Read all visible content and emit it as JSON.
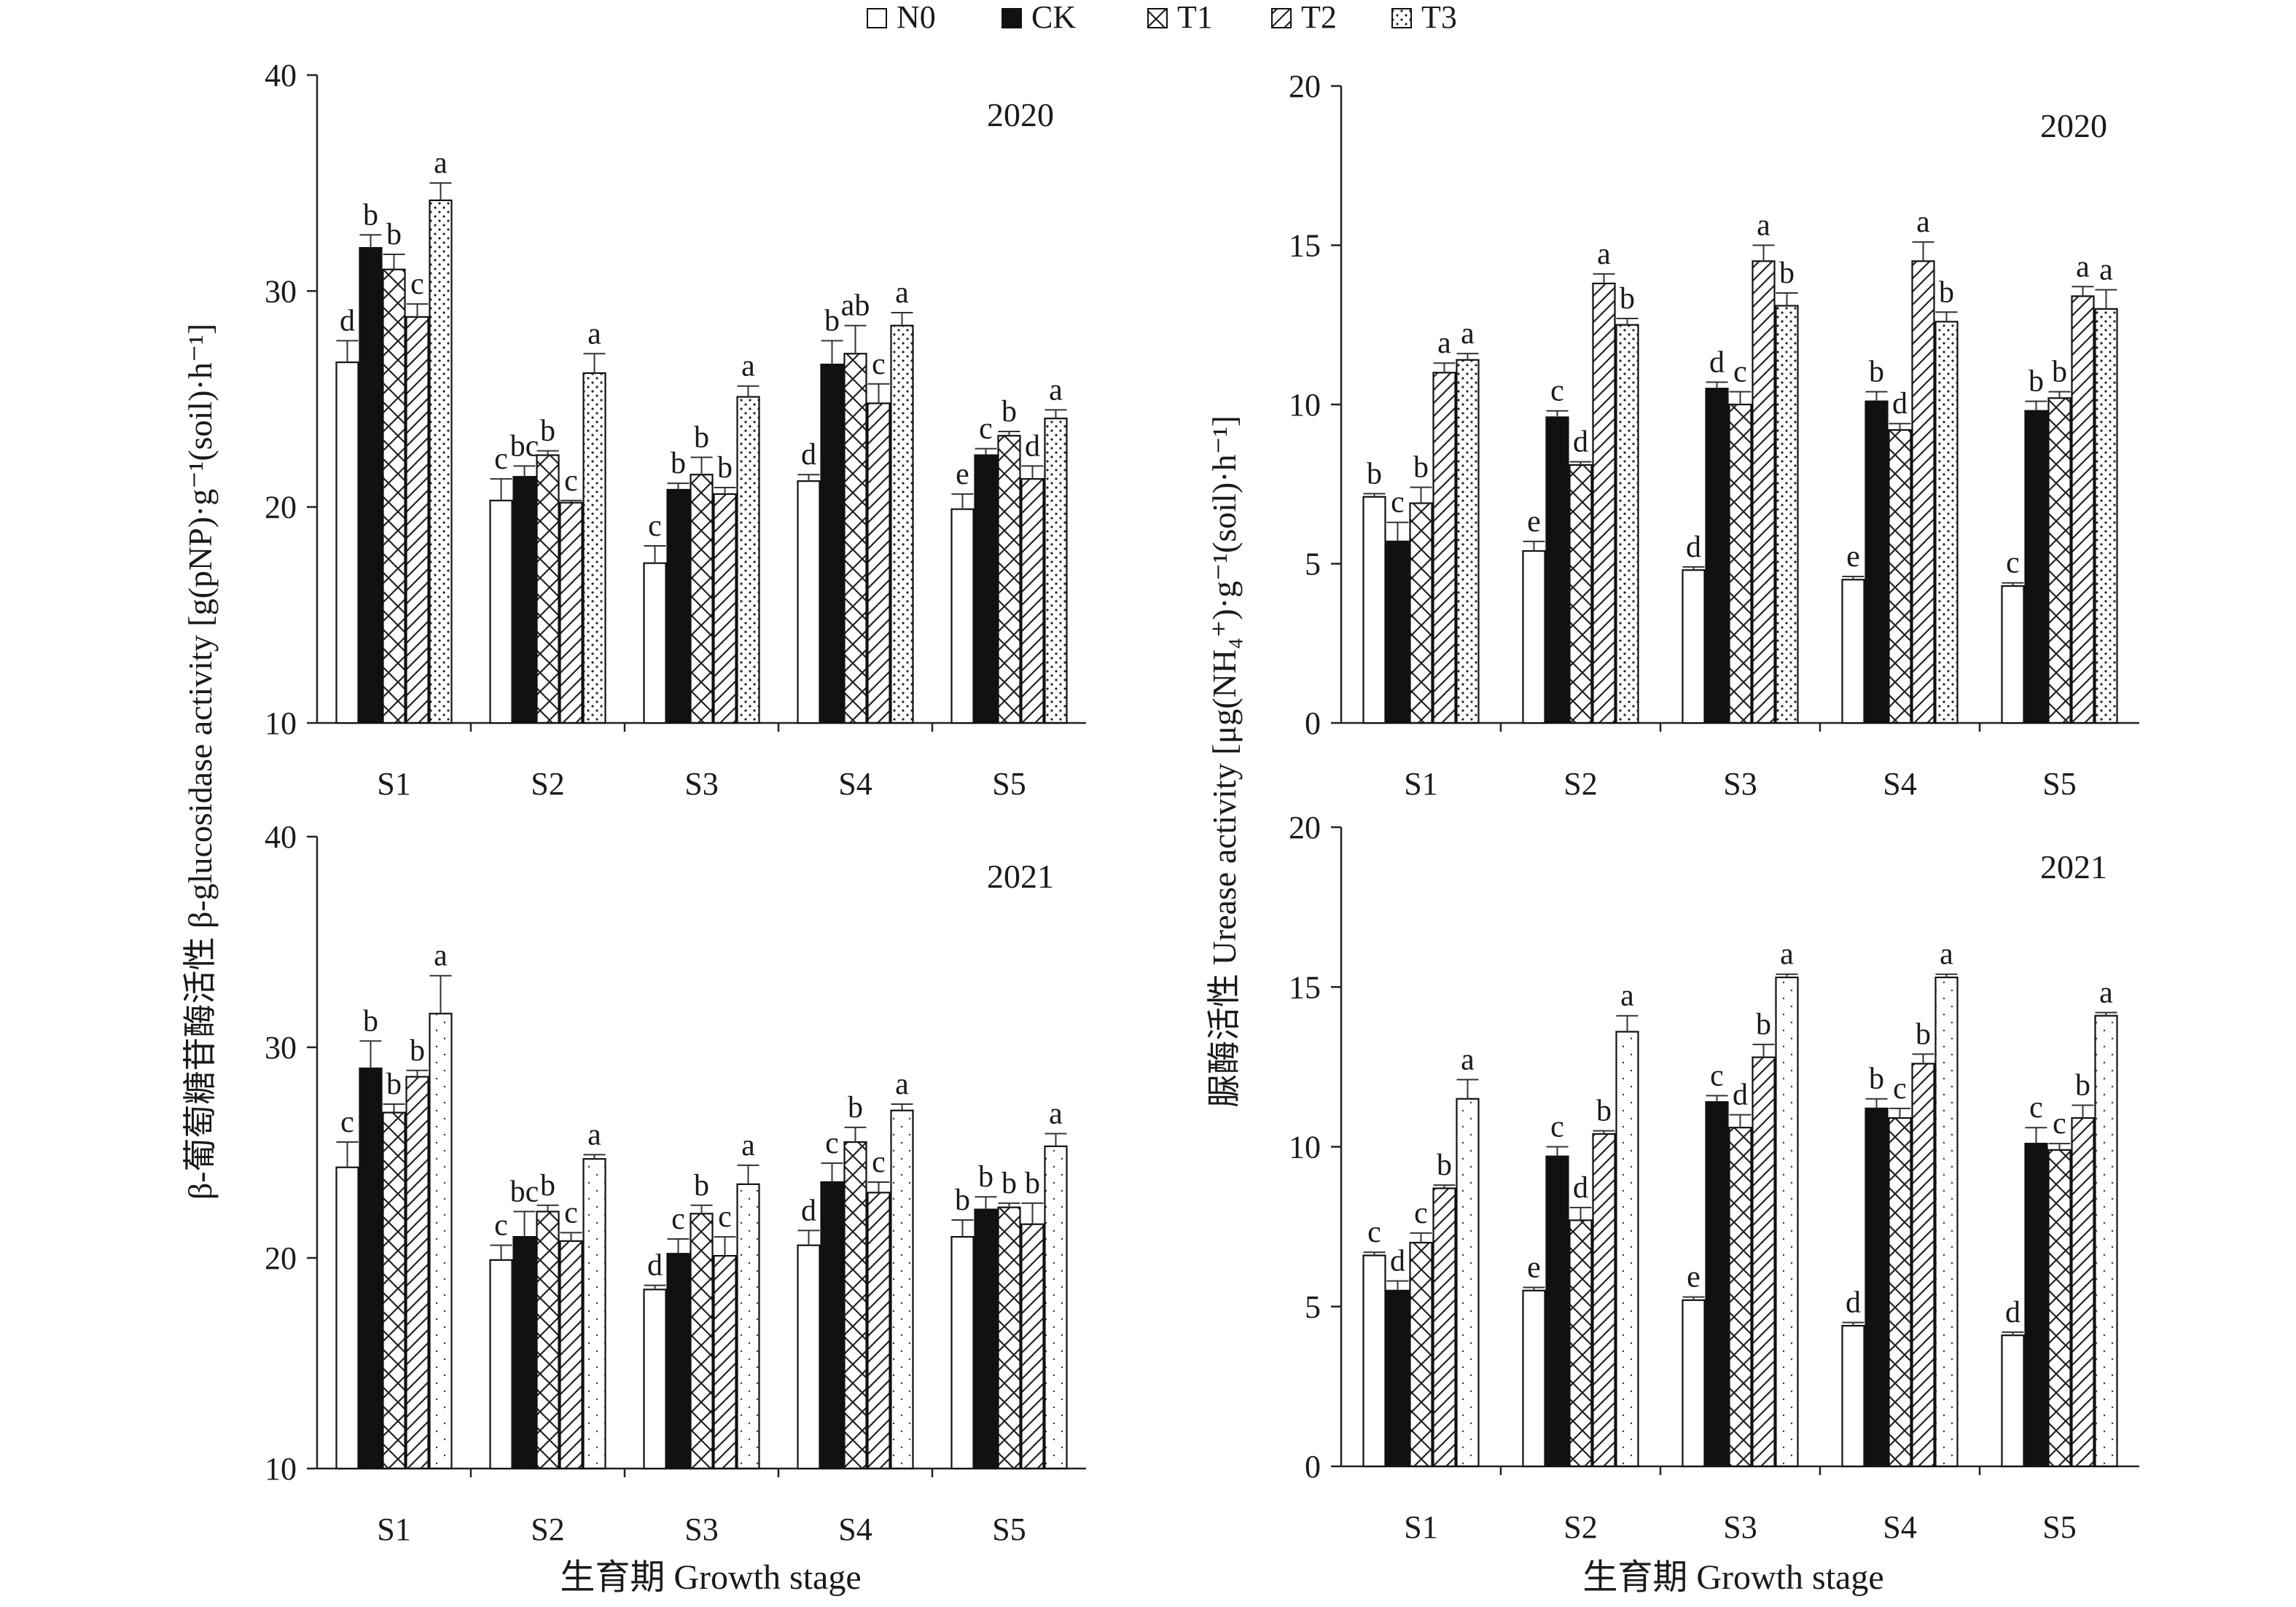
{
  "legend": {
    "placement": "top-center",
    "items": [
      {
        "label": "N0",
        "pattern": "blank"
      },
      {
        "label": "CK",
        "pattern": "solid"
      },
      {
        "label": "T1",
        "pattern": "crosshatch"
      },
      {
        "label": "T2",
        "pattern": "diagonal"
      },
      {
        "label": "T3",
        "pattern": "dots"
      }
    ]
  },
  "left_ylabel": "β-葡萄糖苷酶活性 β-glucosidase activity [g(pNP)·g⁻¹(soil)·h⁻¹]",
  "right_ylabel": "脲酶活性 Urease activity [μg(NH₄⁺)·g⁻¹(soil)·h⁻¹]",
  "xlabel": "生育期 Growth stage",
  "chart_data": [
    {
      "type": "bar",
      "panel": "top-left",
      "title": "2020",
      "categories": [
        "S1",
        "S2",
        "S3",
        "S4",
        "S5"
      ],
      "ylim": [
        10,
        40
      ],
      "yticks": [
        "10",
        "20",
        "30",
        "40"
      ],
      "series": [
        {
          "name": "N0",
          "values": [
            26.7,
            20.3,
            17.4,
            21.2,
            19.9
          ],
          "errors": [
            1.0,
            1.0,
            0.8,
            0.3,
            0.7
          ],
          "letters": [
            "d",
            "c",
            "c",
            "d",
            "e"
          ]
        },
        {
          "name": "CK",
          "values": [
            32.0,
            21.4,
            20.8,
            26.6,
            22.4
          ],
          "errors": [
            0.6,
            0.5,
            0.3,
            1.1,
            0.3
          ],
          "letters": [
            "b",
            "bc",
            "b",
            "b",
            "c"
          ]
        },
        {
          "name": "T1",
          "values": [
            31.0,
            22.4,
            21.5,
            27.1,
            23.3
          ],
          "errors": [
            0.7,
            0.2,
            0.8,
            1.3,
            0.2
          ],
          "letters": [
            "b",
            "b",
            "b",
            "ab",
            "b"
          ]
        },
        {
          "name": "T2",
          "values": [
            28.8,
            20.2,
            20.6,
            24.8,
            21.3
          ],
          "errors": [
            0.6,
            0.1,
            0.3,
            0.9,
            0.6
          ],
          "letters": [
            "c",
            "c",
            "b",
            "c",
            "d"
          ]
        },
        {
          "name": "T3",
          "values": [
            34.2,
            26.2,
            25.1,
            28.4,
            24.1
          ],
          "errors": [
            0.8,
            0.9,
            0.5,
            0.6,
            0.4
          ],
          "letters": [
            "a",
            "a",
            "a",
            "a",
            "a"
          ]
        }
      ]
    },
    {
      "type": "bar",
      "panel": "top-right",
      "title": "2020",
      "categories": [
        "S1",
        "S2",
        "S3",
        "S4",
        "S5"
      ],
      "ylim": [
        0,
        20
      ],
      "yticks": [
        "0",
        "5",
        "10",
        "15",
        "20"
      ],
      "series": [
        {
          "name": "N0",
          "values": [
            7.1,
            5.4,
            4.8,
            4.5,
            4.3
          ],
          "errors": [
            0.1,
            0.3,
            0.1,
            0.1,
            0.1
          ],
          "letters": [
            "b",
            "e",
            "d",
            "e",
            "c"
          ]
        },
        {
          "name": "CK",
          "values": [
            5.7,
            9.6,
            10.5,
            10.1,
            9.8
          ],
          "errors": [
            0.6,
            0.2,
            0.2,
            0.3,
            0.3
          ],
          "letters": [
            "c",
            "c",
            "d",
            "b",
            "b"
          ]
        },
        {
          "name": "T1",
          "values": [
            6.9,
            8.1,
            10.0,
            9.2,
            10.2
          ],
          "errors": [
            0.5,
            0.1,
            0.4,
            0.2,
            0.2
          ],
          "letters": [
            "b",
            "d",
            "c",
            "d",
            "b"
          ]
        },
        {
          "name": "T2",
          "values": [
            11.0,
            13.8,
            14.5,
            14.5,
            13.4
          ],
          "errors": [
            0.3,
            0.3,
            0.5,
            0.6,
            0.3
          ],
          "letters": [
            "a",
            "a",
            "a",
            "a",
            "a"
          ]
        },
        {
          "name": "T3",
          "values": [
            11.4,
            12.5,
            13.1,
            12.6,
            13.0
          ],
          "errors": [
            0.2,
            0.2,
            0.4,
            0.3,
            0.6
          ],
          "letters": [
            "a",
            "b",
            "b",
            "b",
            "a"
          ]
        }
      ]
    },
    {
      "type": "bar",
      "panel": "bottom-left",
      "title": "2021",
      "categories": [
        "S1",
        "S2",
        "S3",
        "S4",
        "S5"
      ],
      "ylim": [
        10,
        40
      ],
      "yticks": [
        "10",
        "20",
        "30",
        "40"
      ],
      "series": [
        {
          "name": "N0",
          "values": [
            24.3,
            19.9,
            18.5,
            20.6,
            21.0
          ],
          "errors": [
            1.2,
            0.7,
            0.2,
            0.7,
            0.8
          ],
          "letters": [
            "c",
            "c",
            "d",
            "d",
            "b"
          ]
        },
        {
          "name": "CK",
          "values": [
            29.0,
            21.0,
            20.2,
            23.6,
            22.3
          ],
          "errors": [
            1.3,
            1.2,
            0.7,
            0.9,
            0.6
          ],
          "letters": [
            "b",
            "bc",
            "c",
            "c",
            "b"
          ]
        },
        {
          "name": "T1",
          "values": [
            26.9,
            22.2,
            22.1,
            25.5,
            22.4
          ],
          "errors": [
            0.4,
            0.3,
            0.4,
            0.7,
            0.2
          ],
          "letters": [
            "b",
            "b",
            "b",
            "b",
            "b"
          ]
        },
        {
          "name": "T2",
          "values": [
            28.6,
            20.8,
            20.1,
            23.1,
            21.6
          ],
          "errors": [
            0.3,
            0.4,
            0.9,
            0.5,
            1.0
          ],
          "letters": [
            "b",
            "c",
            "c",
            "c",
            "b"
          ]
        },
        {
          "name": "T3",
          "values": [
            31.6,
            24.7,
            23.5,
            27.0,
            25.3
          ],
          "errors": [
            1.8,
            0.2,
            0.9,
            0.3,
            0.6
          ],
          "letters": [
            "a",
            "a",
            "a",
            "a",
            "a"
          ]
        }
      ]
    },
    {
      "type": "bar",
      "panel": "bottom-right",
      "title": "2021",
      "categories": [
        "S1",
        "S2",
        "S3",
        "S4",
        "S5"
      ],
      "ylim": [
        0,
        20
      ],
      "yticks": [
        "0",
        "5",
        "10",
        "15",
        "20"
      ],
      "series": [
        {
          "name": "N0",
          "values": [
            6.6,
            5.5,
            5.2,
            4.4,
            4.1
          ],
          "errors": [
            0.1,
            0.1,
            0.1,
            0.1,
            0.1
          ],
          "letters": [
            "c",
            "e",
            "e",
            "d",
            "d"
          ]
        },
        {
          "name": "CK",
          "values": [
            5.5,
            9.7,
            11.4,
            11.2,
            10.1
          ],
          "errors": [
            0.3,
            0.3,
            0.2,
            0.3,
            0.5
          ],
          "letters": [
            "d",
            "c",
            "c",
            "b",
            "c"
          ]
        },
        {
          "name": "T1",
          "values": [
            7.0,
            7.7,
            10.6,
            10.9,
            9.9
          ],
          "errors": [
            0.3,
            0.4,
            0.4,
            0.3,
            0.2
          ],
          "letters": [
            "c",
            "d",
            "d",
            "c",
            "c"
          ]
        },
        {
          "name": "T2",
          "values": [
            8.7,
            10.4,
            12.8,
            12.6,
            10.9
          ],
          "errors": [
            0.1,
            0.1,
            0.4,
            0.3,
            0.4
          ],
          "letters": [
            "b",
            "b",
            "b",
            "b",
            "b"
          ]
        },
        {
          "name": "T3",
          "values": [
            11.5,
            13.6,
            15.3,
            15.3,
            14.1
          ],
          "errors": [
            0.6,
            0.5,
            0.1,
            0.1,
            0.1
          ],
          "letters": [
            "a",
            "a",
            "a",
            "a",
            "a"
          ]
        }
      ]
    }
  ]
}
